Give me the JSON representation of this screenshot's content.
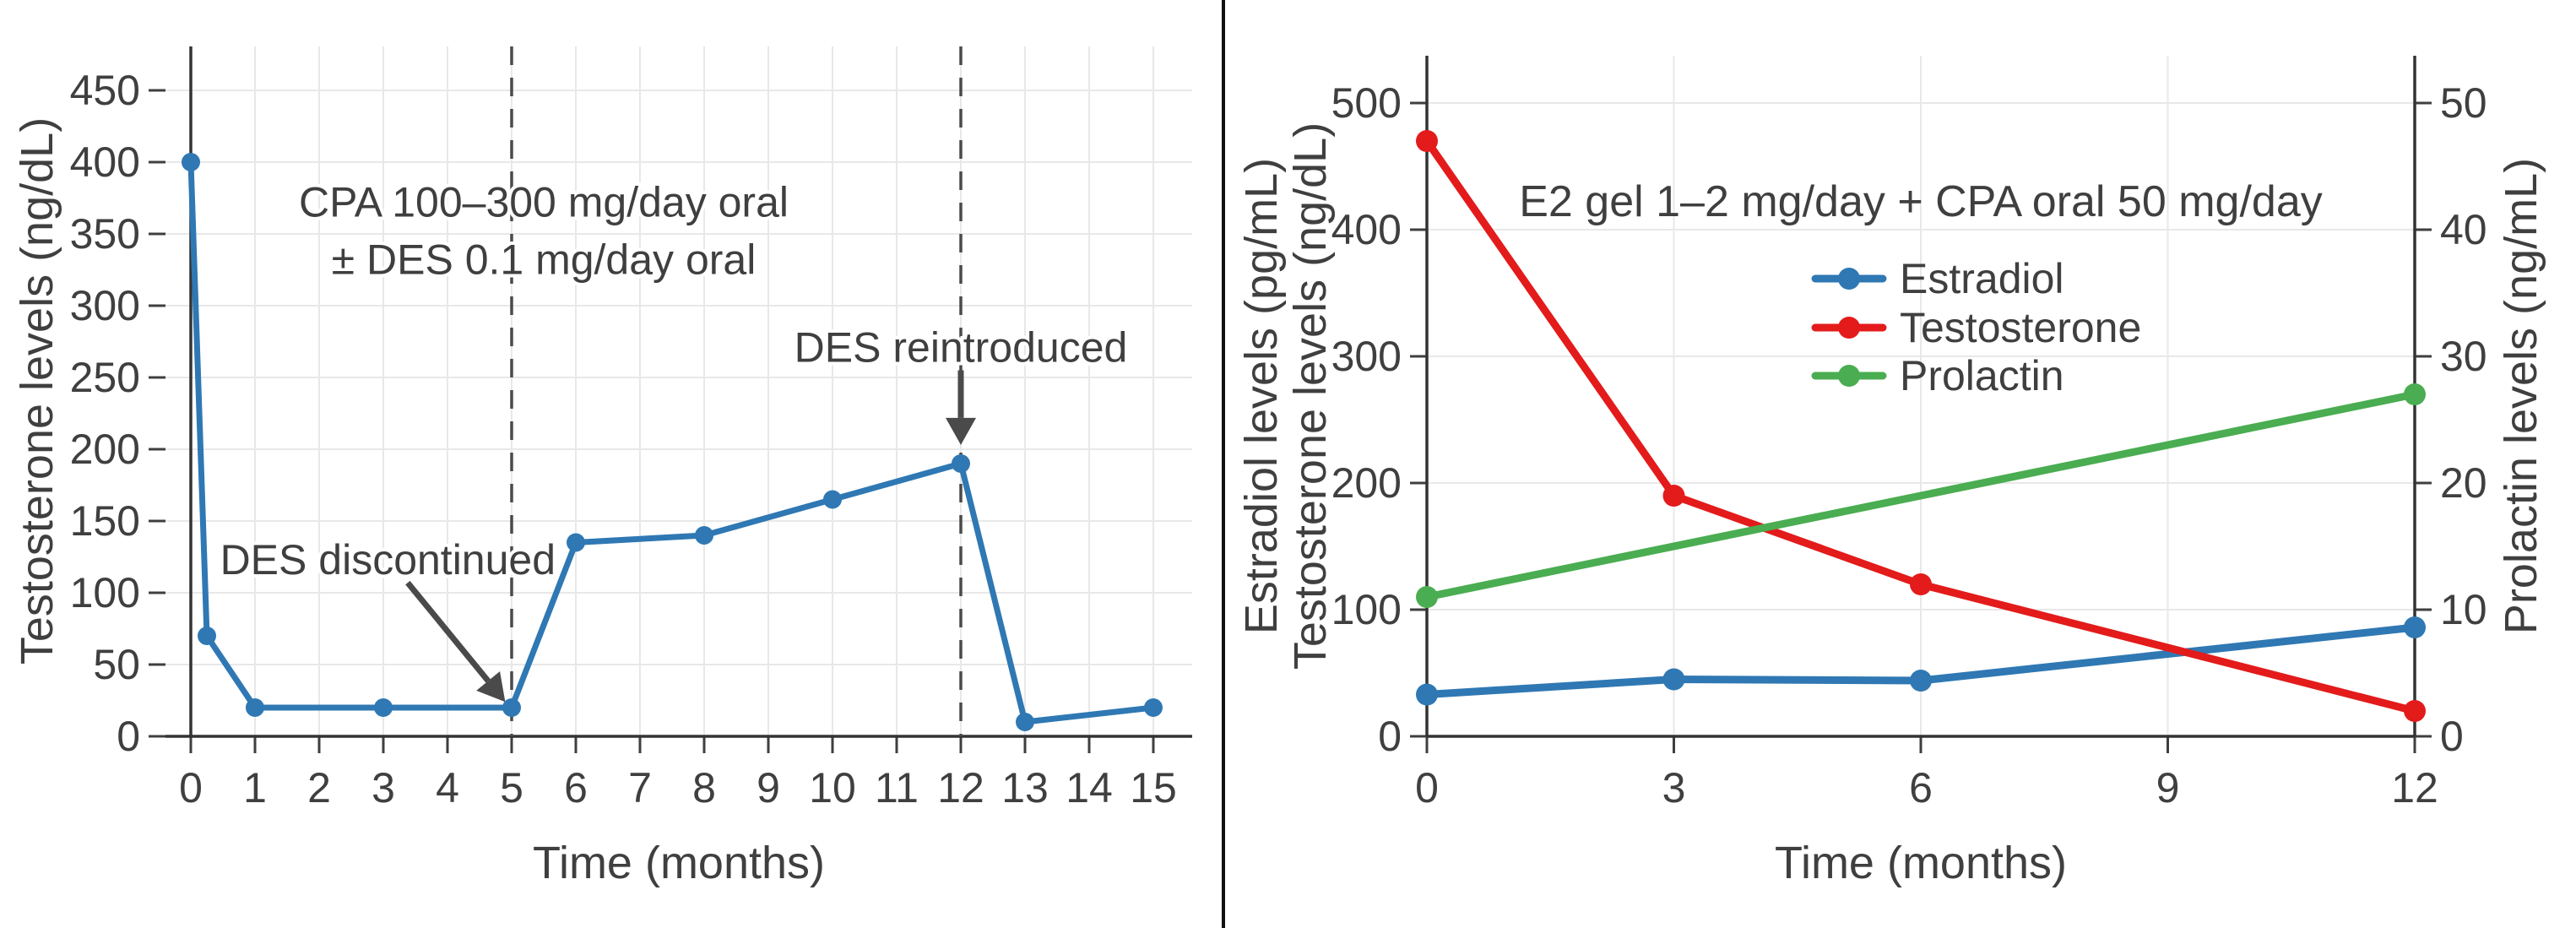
{
  "figure": {
    "background": "#ffffff",
    "divider_color": "#111111",
    "text_color": "#3f3f3f",
    "grid_color": "#e8e8e8",
    "spine_color": "#333333",
    "tick_color": "#3f3f3f",
    "dashed_line_color": "#4a4a4a",
    "arrow_color": "#4a4a4a"
  },
  "chart_data": [
    {
      "type": "line",
      "panel": "left",
      "title": "",
      "xlabel": "Time (months)",
      "ylabel": "Testosterone levels (ng/dL)",
      "xlim": [
        -0.4,
        15.6
      ],
      "ylim": [
        0,
        480
      ],
      "xticks": [
        0,
        1,
        2,
        3,
        4,
        5,
        6,
        7,
        8,
        9,
        10,
        11,
        12,
        13,
        14,
        15
      ],
      "yticks": [
        0,
        50,
        100,
        150,
        200,
        250,
        300,
        350,
        400,
        450
      ],
      "grid": true,
      "legend_position": "none",
      "dashed_vlines": [
        5,
        12
      ],
      "series": [
        {
          "name": "Testosterone",
          "color": "#2f78b3",
          "axis": "left",
          "x": [
            0,
            0.25,
            1,
            3,
            5,
            6,
            8,
            10,
            12,
            13,
            15
          ],
          "values": [
            400,
            70,
            20,
            20,
            20,
            135,
            140,
            165,
            190,
            10,
            20
          ]
        }
      ],
      "annotations": [
        {
          "text": "CPA 100–300 mg/day oral",
          "x": 5.5,
          "y": 372
        },
        {
          "text": "± DES 0.1 mg/day oral",
          "x": 5.5,
          "y": 332
        },
        {
          "text": "DES discontinued",
          "x": 3.07,
          "y": 123,
          "arrow": {
            "from": [
              3.38,
              107
            ],
            "to": [
              4.9,
              24
            ]
          }
        },
        {
          "text": "DES reintroduced",
          "x": 12,
          "y": 271,
          "arrow": {
            "from": [
              12,
              255
            ],
            "to": [
              12,
              203
            ]
          }
        }
      ]
    },
    {
      "type": "line",
      "panel": "right",
      "title": "E2 gel 1–2 mg/day + CPA oral 50 mg/day",
      "xlabel": "Time (months)",
      "ylabel_left_lines": [
        "Estradiol levels (pg/mL)",
        "Testosterone levels (ng/dL)"
      ],
      "ylabel_right": "Prolactin levels (ng/mL)",
      "xlim": [
        0,
        12
      ],
      "ylim": [
        0,
        537
      ],
      "y2lim": [
        0,
        53.7
      ],
      "xticks": [
        0,
        3,
        6,
        9,
        12
      ],
      "yticks": [
        0,
        100,
        200,
        300,
        400,
        500
      ],
      "y2ticks": [
        0,
        10,
        20,
        30,
        40,
        50
      ],
      "grid": true,
      "legend_position": "center",
      "dashed_vlines": [],
      "series": [
        {
          "name": "Estradiol",
          "color": "#2f78b3",
          "axis": "left",
          "x": [
            0,
            3,
            6,
            12
          ],
          "values": [
            33,
            45,
            44,
            86
          ]
        },
        {
          "name": "Testosterone",
          "color": "#e31b1b",
          "axis": "left",
          "x": [
            0,
            3,
            6,
            12
          ],
          "values": [
            470,
            190,
            120,
            20
          ]
        },
        {
          "name": "Prolactin",
          "color": "#4aad51",
          "axis": "right",
          "x": [
            0,
            12
          ],
          "values": [
            11,
            27
          ]
        }
      ],
      "annotations": [],
      "legend": {
        "entries": [
          "Estradiol",
          "Testosterone",
          "Prolactin"
        ]
      }
    }
  ]
}
